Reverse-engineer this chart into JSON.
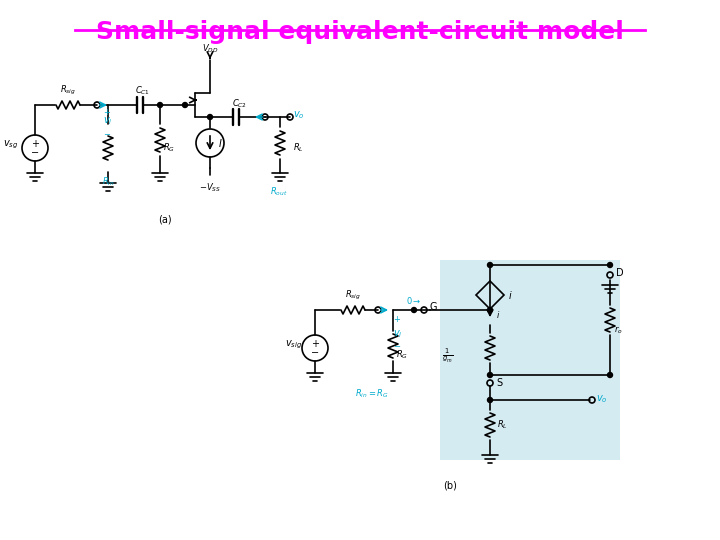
{
  "title": "Small-signal equivalent-circuit model",
  "title_color": "#FF00FF",
  "title_underline": true,
  "bg_color": "#FFFFFF",
  "black": "#000000",
  "cyan": "#00AACC",
  "blue_box_color": "#ADD8E6",
  "label_a": "(a)",
  "label_b": "(b)"
}
